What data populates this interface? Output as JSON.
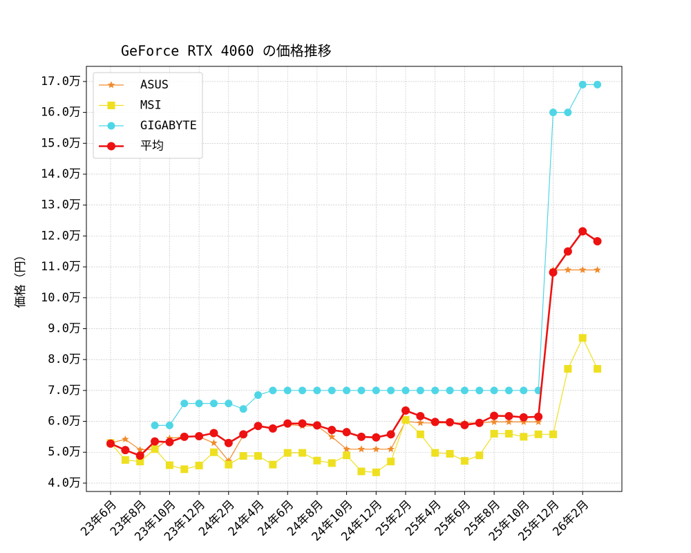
{
  "chart_data": {
    "type": "line",
    "title": "GeForce RTX 4060 の価格推移",
    "y_label": "価格（円）",
    "categories": [
      "23年6月",
      null,
      "23年8月",
      null,
      "23年10月",
      null,
      "23年12月",
      null,
      "24年2月",
      null,
      "24年4月",
      null,
      "24年6月",
      null,
      "24年8月",
      null,
      "24年10月",
      null,
      "24年12月",
      null,
      "25年2月",
      null,
      "25年4月",
      null,
      "25年6月",
      null,
      "25年8月",
      null,
      "25年10月",
      null,
      "25年12月",
      null,
      "26年2月",
      null
    ],
    "series": [
      {
        "name": "ASUS",
        "color": "#f08a2c",
        "marker": "star",
        "linewidth": 1.2,
        "values": [
          53000,
          54200,
          50800,
          51000,
          54500,
          55000,
          55000,
          53000,
          47200,
          55500,
          58500,
          58000,
          59000,
          58500,
          58500,
          55000,
          51000,
          51000,
          51000,
          51000,
          60000,
          59500,
          59500,
          59500,
          59500,
          59500,
          59800,
          59800,
          59800,
          59800,
          109000,
          109000,
          109000,
          109000
        ]
      },
      {
        "name": "MSI",
        "color": "#eee020",
        "marker": "square",
        "linewidth": 1.2,
        "values": [
          53000,
          47500,
          47000,
          51000,
          45800,
          44500,
          45700,
          50000,
          46000,
          48800,
          48800,
          46000,
          49800,
          49800,
          47300,
          46500,
          49000,
          43800,
          43500,
          47000,
          60500,
          55800,
          49800,
          49500,
          47200,
          49000,
          56000,
          56000,
          55000,
          55800,
          55800,
          77000,
          87000,
          77000
        ]
      },
      {
        "name": "GIGABYTE",
        "color": "#4fd6e6",
        "marker": "circle",
        "linewidth": 1.2,
        "values": [
          null,
          null,
          null,
          58700,
          58700,
          65800,
          65800,
          65800,
          65800,
          64000,
          68500,
          70000,
          70000,
          70000,
          70000,
          70000,
          70000,
          70000,
          70000,
          70000,
          70000,
          70000,
          70000,
          70000,
          70000,
          70000,
          70000,
          70000,
          70000,
          70000,
          160000,
          160000,
          169000,
          169000
        ]
      },
      {
        "name": "平均",
        "color": "#ee1111",
        "marker": "circle",
        "linewidth": 2.6,
        "values": [
          52800,
          50700,
          48900,
          53500,
          53300,
          55000,
          55200,
          56200,
          53000,
          55800,
          58500,
          57700,
          59300,
          59300,
          58700,
          57200,
          56500,
          55000,
          54800,
          55800,
          63500,
          61700,
          59800,
          59700,
          58800,
          59500,
          61800,
          61700,
          61300,
          61500,
          108200,
          115000,
          121500,
          118300
        ]
      }
    ],
    "ylim": [
      37300,
      174900
    ],
    "yticks": [
      {
        "value": 40000,
        "label": "4.0万"
      },
      {
        "value": 50000,
        "label": "5.0万"
      },
      {
        "value": 60000,
        "label": "6.0万"
      },
      {
        "value": 70000,
        "label": "7.0万"
      },
      {
        "value": 80000,
        "label": "8.0万"
      },
      {
        "value": 90000,
        "label": "9.0万"
      },
      {
        "value": 100000,
        "label": "10.0万"
      },
      {
        "value": 110000,
        "label": "11.0万"
      },
      {
        "value": 120000,
        "label": "12.0万"
      },
      {
        "value": 130000,
        "label": "13.0万"
      },
      {
        "value": 140000,
        "label": "14.0万"
      },
      {
        "value": 150000,
        "label": "15.0万"
      },
      {
        "value": 160000,
        "label": "16.0万"
      },
      {
        "value": 170000,
        "label": "17.0万"
      }
    ],
    "grid": true,
    "legend": "upper left"
  }
}
